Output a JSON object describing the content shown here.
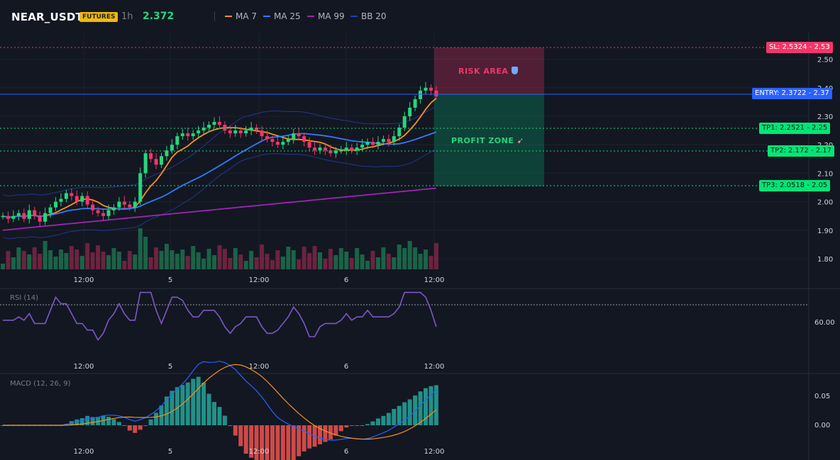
{
  "header": {
    "symbol": "NEAR_USDT",
    "badge": "FUTURES",
    "timeframe": "1h",
    "price": "2.372",
    "legend": [
      {
        "label": "MA 7",
        "color": "#f7931a"
      },
      {
        "label": "MA 25",
        "color": "#2f7df6"
      },
      {
        "label": "MA 99",
        "color": "#9c27b0"
      },
      {
        "label": "BB 20",
        "color": "#1e3a8a"
      }
    ]
  },
  "price_axis": [
    "2.50",
    "2.40",
    "2.30",
    "2.20",
    "2.10",
    "2.00",
    "1.90",
    "1.80"
  ],
  "time_axis": [
    "12:00",
    "5",
    "12:00",
    "6",
    "12:00"
  ],
  "levels": {
    "sl": {
      "label": "SL: 2.5324",
      "value": "2.53",
      "color": "#f23669"
    },
    "entry": {
      "label": "ENTRY: 2.3722",
      "value": "2.37",
      "color": "#2962ff"
    },
    "tp1": {
      "label": "TP1: 2.2521",
      "value": "2.25",
      "color": "#00e676"
    },
    "tp2": {
      "label": "TP2: 2.172",
      "value": "2.17",
      "color": "#00e676"
    },
    "tp3": {
      "label": "TP3: 2.0518",
      "value": "2.05",
      "color": "#00e676"
    }
  },
  "zones": {
    "risk": "RISK AREA",
    "risk_icon": "shield-icon",
    "profit": "PROFIT ZONE",
    "profit_icon": "rocket-icon"
  },
  "rsi": {
    "label": "RSI (14)",
    "axis": "60.00"
  },
  "macd": {
    "label": "MACD (12, 26, 9)",
    "axis": [
      "0.05",
      "0.00"
    ]
  },
  "colors": {
    "up": "#26d67d",
    "down": "#f23669",
    "background": "#131722",
    "rsi_line": "#7e57c2"
  }
}
